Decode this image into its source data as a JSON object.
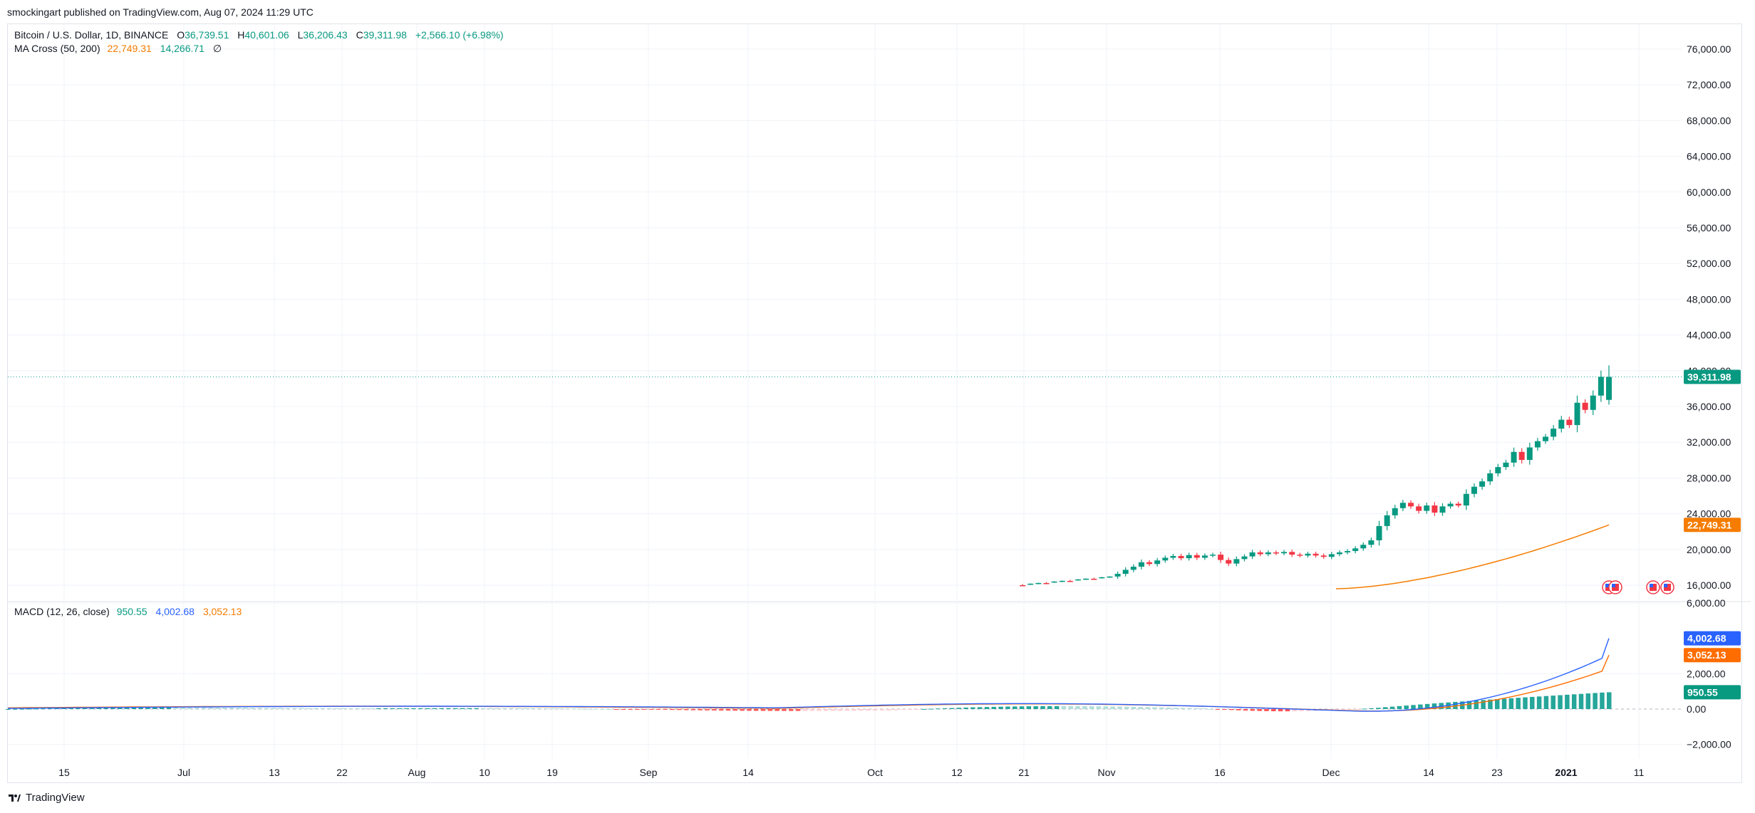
{
  "attribution": "smockingart published on TradingView.com, Aug 07, 2024 11:29 UTC",
  "legend_main": {
    "symbol": "Bitcoin / U.S. Dollar, 1D, BINANCE",
    "o_label": "O",
    "o": "36,739.51",
    "h_label": "H",
    "h": "40,601.06",
    "l_label": "L",
    "l": "36,206.43",
    "c_label": "C",
    "c": "39,311.98",
    "change": "+2,566.10 (+6.98%)"
  },
  "legend_ma": {
    "label": "MA Cross (50, 200)",
    "ma50": "22,749.31",
    "ma200": "14,266.71",
    "extra": "∅"
  },
  "legend_macd": {
    "label": "MACD (12, 26, close)",
    "hist": "950.55",
    "macd": "4,002.68",
    "signal": "3,052.13"
  },
  "footer": {
    "brand": "TradingView",
    "logo_icon": "tradingview-logo-icon"
  },
  "colors": {
    "up": "#089981",
    "down": "#f23645",
    "ma50": "#f57c00",
    "macd": "#2962ff",
    "signal": "#ff6d00",
    "grid": "#f0f3fa",
    "axis_text": "#131722"
  },
  "price_axis": {
    "ticks": [
      "76,000.00",
      "72,000.00",
      "68,000.00",
      "64,000.00",
      "60,000.00",
      "56,000.00",
      "52,000.00",
      "48,000.00",
      "44,000.00",
      "40,000.00",
      "36,000.00",
      "32,000.00",
      "28,000.00",
      "24,000.00",
      "20,000.00",
      "16,000.00"
    ],
    "tick_values": [
      76000,
      72000,
      68000,
      64000,
      60000,
      56000,
      52000,
      48000,
      44000,
      40000,
      36000,
      32000,
      28000,
      24000,
      20000,
      16000
    ],
    "last_price": "39,311.98",
    "last_price_value": 39311.98,
    "ma_badge": "22,749.31",
    "ma_badge_value": 22749.31
  },
  "macd_axis": {
    "ticks": [
      "6,000.00",
      "2,000.00",
      "0.00",
      "−2,000.00"
    ],
    "tick_values": [
      6000,
      2000,
      0,
      -2000
    ],
    "badges": [
      {
        "text": "4,002.68",
        "value": 4002.68,
        "color": "#2962ff"
      },
      {
        "text": "3,052.13",
        "value": 3052.13,
        "color": "#ff6d00"
      },
      {
        "text": "950.55",
        "value": 950.55,
        "color": "#089981"
      }
    ]
  },
  "time_axis": {
    "labels": [
      "15",
      "Jul",
      "13",
      "22",
      "Aug",
      "10",
      "19",
      "Sep",
      "14",
      "Oct",
      "12",
      "21",
      "Nov",
      "16",
      "Dec",
      "14",
      "23",
      "2021",
      "11"
    ],
    "bold": [
      "2021"
    ]
  },
  "event_markers": [
    "us-flag-icon",
    "us-flag-icon",
    "us-flag-icon",
    "us-flag-icon"
  ]
}
